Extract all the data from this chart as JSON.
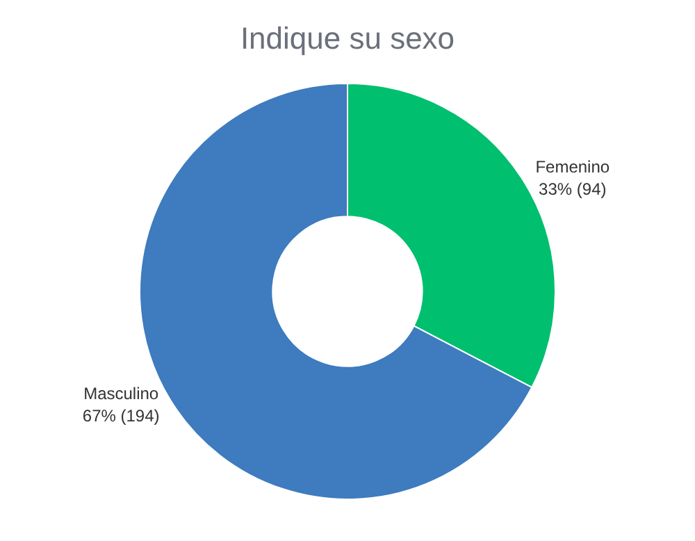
{
  "chart_data": {
    "type": "donut",
    "title": "Indique su sexo",
    "categories": [
      "Femenino",
      "Masculino"
    ],
    "values": [
      94,
      194
    ],
    "value_labels": [
      "33% (94)",
      "67% (194)"
    ],
    "colors": [
      "#00bf6f",
      "#3e7bbf"
    ],
    "legend": false
  }
}
